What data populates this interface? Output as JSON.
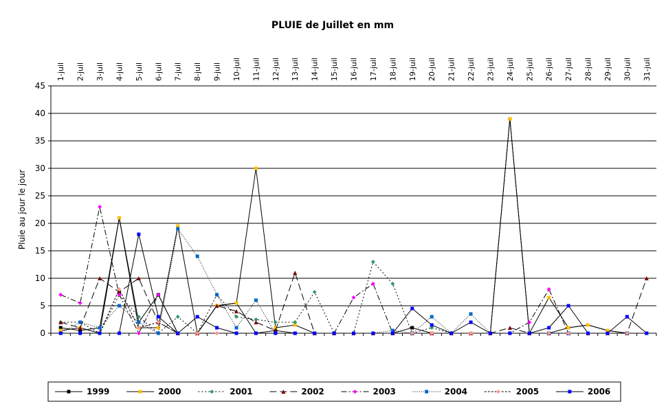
{
  "chart_data": {
    "type": "line",
    "title": "PLUIE de Juillet en mm",
    "xlabel": "",
    "ylabel": "Pluie au jour le jour",
    "ylim": [
      0,
      45
    ],
    "yticks": [
      0,
      5,
      10,
      15,
      20,
      25,
      30,
      35,
      40,
      45
    ],
    "grid": true,
    "legend_position": "bottom",
    "categories": [
      "1-juil",
      "2-juil",
      "3-juil",
      "4-juil",
      "5-juil",
      "6-juil",
      "7-juil",
      "8-juil",
      "9-juil",
      "10-juil",
      "11-juil",
      "12-juil",
      "13-juil",
      "14-juil",
      "15-juil",
      "16-juil",
      "17-juil",
      "18-juil",
      "19-juil",
      "20-juil",
      "21-juil",
      "22-juil",
      "23-juil",
      "24-juil",
      "25-juil",
      "26-juil",
      "27-juil",
      "28-juil",
      "29-juil",
      "30-juil",
      "31-juil"
    ],
    "series": [
      {
        "name": "1999",
        "color": "#000000",
        "dash": "",
        "marker": "square",
        "values": [
          1,
          0.5,
          1,
          21,
          2,
          7,
          0,
          0,
          5,
          5.5,
          0,
          0.5,
          0,
          0,
          0,
          0,
          0,
          0,
          1,
          0,
          0,
          0,
          0,
          39,
          0,
          0,
          1,
          1.5,
          0.5,
          0,
          0
        ]
      },
      {
        "name": "2000",
        "color": "#FFC000",
        "dash": "",
        "marker": "square",
        "values": [
          0.5,
          1,
          0,
          21,
          1,
          1,
          19.5,
          0,
          5,
          5.5,
          30,
          1,
          1.5,
          0,
          0,
          0,
          0,
          0,
          0,
          0,
          0,
          0,
          0,
          39,
          0,
          6.5,
          1,
          1.5,
          0.5,
          0,
          0
        ]
      },
      {
        "name": "2001",
        "color": "#339966",
        "dash": "2 3",
        "marker": "diamond",
        "values": [
          2,
          2,
          0,
          7,
          3,
          0,
          3,
          0,
          7,
          3,
          2.5,
          2,
          2,
          7.5,
          0,
          0,
          13,
          9,
          0,
          1,
          0,
          0,
          0,
          0,
          0,
          0,
          0,
          0,
          0,
          0,
          0
        ]
      },
      {
        "name": "2002",
        "color": "#800000",
        "dash": "10 5",
        "marker": "triangle",
        "values": [
          2,
          1,
          10,
          7.5,
          10,
          2,
          0,
          0,
          5,
          4,
          2,
          0.5,
          11,
          0,
          0,
          0,
          0,
          0,
          0,
          0,
          0,
          0,
          0,
          1,
          0,
          0,
          0,
          0,
          0,
          0,
          10
        ]
      },
      {
        "name": "2003",
        "color": "#FF00FF",
        "dash": "8 3 2 3",
        "marker": "diamond",
        "values": [
          7,
          5.5,
          23,
          7,
          0,
          7,
          0,
          0,
          0,
          0,
          0,
          0,
          0,
          0,
          0,
          6.5,
          9,
          0,
          0,
          0,
          0,
          0,
          0,
          0,
          2,
          8,
          0,
          0,
          0,
          0,
          0
        ]
      },
      {
        "name": "2004",
        "color": "#0066CC",
        "dash": "1 2",
        "marker": "square",
        "values": [
          0,
          2,
          1,
          5,
          2,
          0,
          19,
          14,
          7,
          1,
          6,
          0,
          0,
          0,
          0,
          0,
          0,
          0.5,
          0,
          3,
          0,
          3.5,
          0,
          0,
          0,
          0,
          0,
          0,
          0,
          0,
          0
        ]
      },
      {
        "name": "2005",
        "color": "#FF9999",
        "dash": "3 2",
        "marker": "diamond",
        "values": [
          0,
          0,
          0,
          8,
          1,
          2,
          0,
          0,
          0,
          0,
          0,
          0,
          0,
          0,
          0,
          0,
          0,
          0,
          0,
          0,
          0,
          0,
          0,
          0,
          0,
          0,
          0,
          0,
          0,
          0,
          0
        ]
      },
      {
        "name": "2006",
        "color": "#0000FF",
        "dash": "",
        "marker": "square",
        "values": [
          0,
          0,
          0,
          0,
          18,
          3,
          0,
          3,
          1,
          0,
          0,
          0,
          0,
          0,
          0,
          0,
          0,
          0,
          4.5,
          1.5,
          0,
          2,
          0,
          0,
          0,
          1,
          5,
          0,
          0,
          3,
          0
        ]
      }
    ]
  }
}
